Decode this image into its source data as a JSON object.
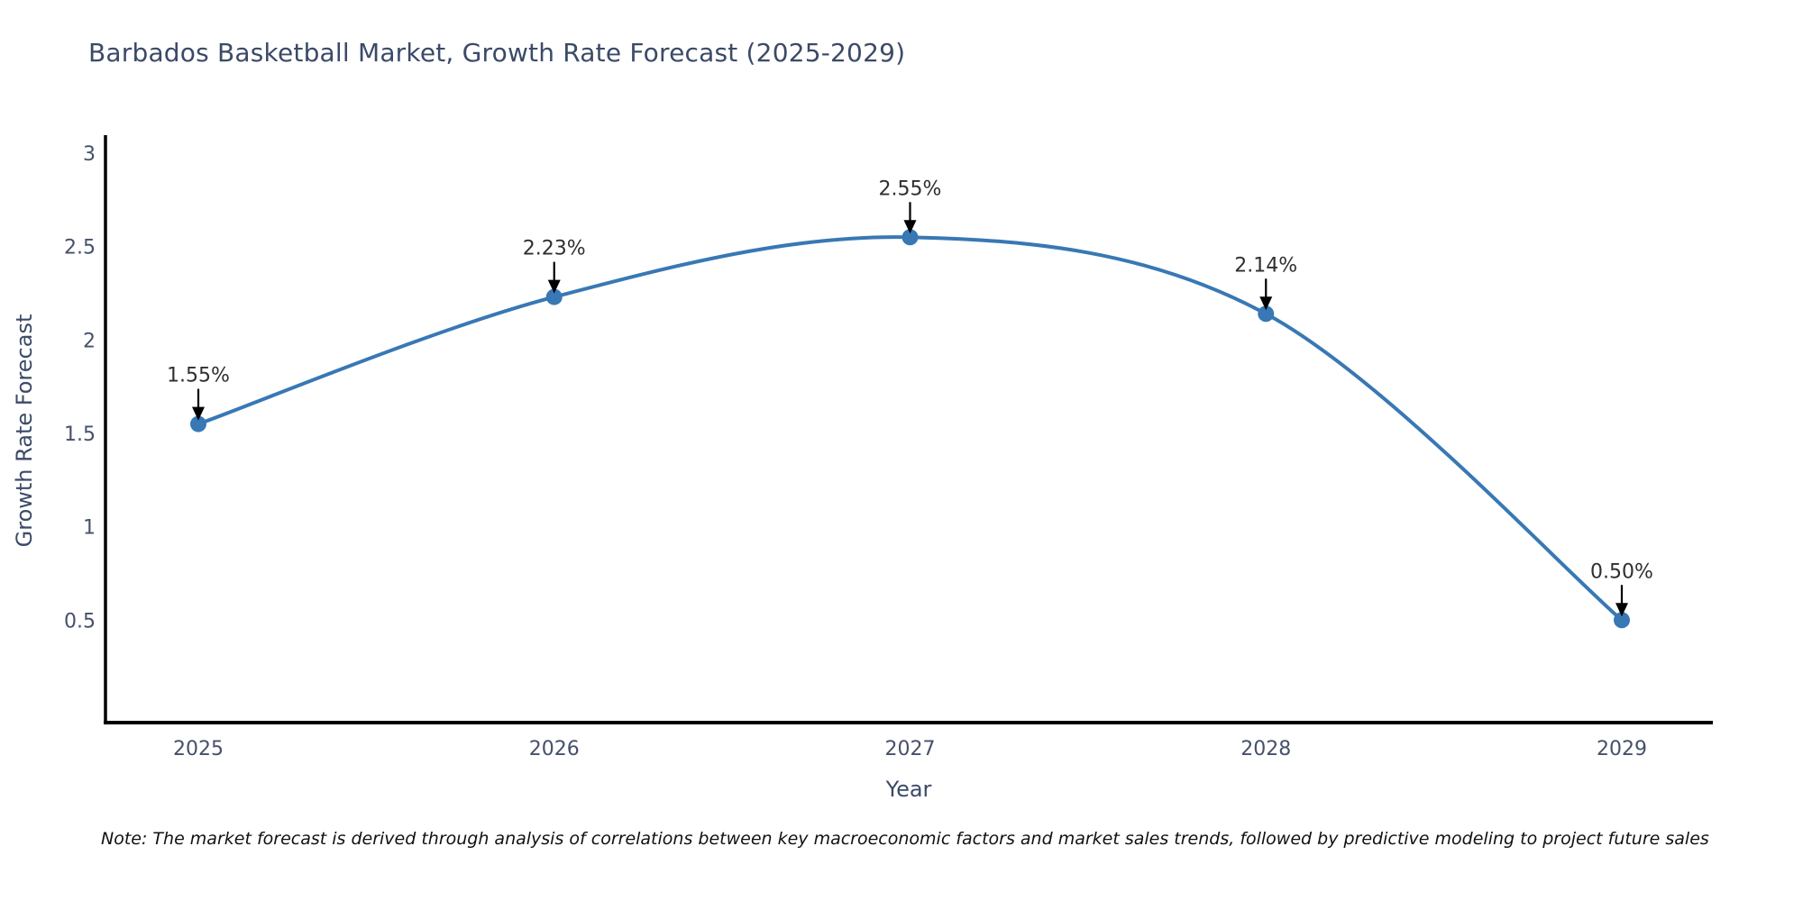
{
  "header": {
    "title": "Barbados Basketball Market, Growth Rate Forecast (2025-2029)"
  },
  "footer": {
    "note": "Note: The market forecast is derived through analysis of correlations between key macroeconomic factors and market sales trends, followed by predictive modeling to project future sales"
  },
  "chart_data": {
    "type": "line",
    "title": "Barbados Basketball Market, Growth Rate Forecast (2025-2029)",
    "xlabel": "Year",
    "ylabel": "Growth Rate Forecast",
    "x": [
      2025,
      2026,
      2027,
      2028,
      2029
    ],
    "values": [
      1.55,
      2.23,
      2.55,
      2.14,
      0.5
    ],
    "point_labels": [
      "1.55%",
      "2.23%",
      "2.55%",
      "2.14%",
      "0.50%"
    ],
    "xticks": [
      "2025",
      "2026",
      "2027",
      "2028",
      "2029"
    ],
    "yticks": [
      0.5,
      1,
      1.5,
      2,
      2.5,
      3
    ],
    "ytick_labels": [
      "0.5",
      "1",
      "1.5",
      "2",
      "2.5",
      "3"
    ],
    "ylim": [
      -0.05,
      3.1
    ],
    "xlim": [
      2024.73,
      2029.26
    ],
    "grid": false,
    "legend_position": "none",
    "line_shape": "spline",
    "marker_size": 9,
    "colors": {
      "line": "#3878b4",
      "marker": "#3878b4",
      "axis": "#000000",
      "tick_label": "#46506a",
      "annotation_text": "#2f2f2f",
      "annotation_arrow": "#000000",
      "background": "#ffffff"
    }
  }
}
